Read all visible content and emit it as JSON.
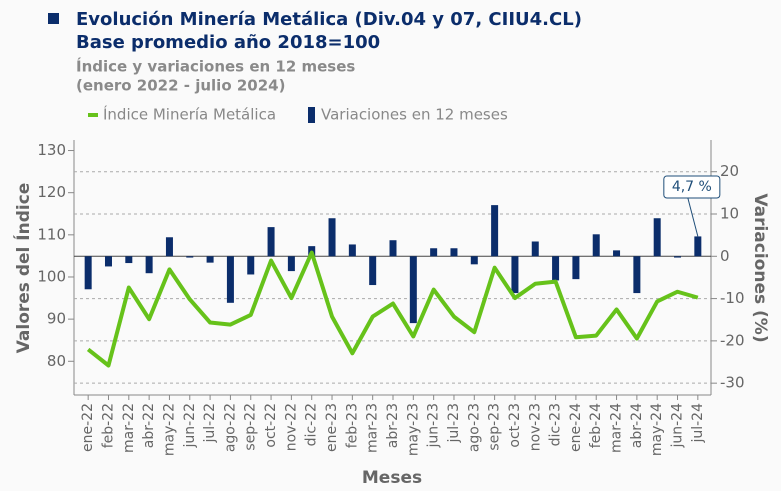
{
  "chart_data": {
    "type": "bar-line",
    "title": "Evolución Minería Metálica (Div.04 y 07, CIIU4.CL)",
    "subtitle": "Base promedio año 2018=100",
    "subtitle2": "Índice y variaciones en 12 meses",
    "subtitle3": "(enero 2022 - julio 2024)",
    "xlabel": "Meses",
    "ylabel": "Valores del Índice",
    "y2label": "Variaciones (%)",
    "categories": [
      "ene-22",
      "feb-22",
      "mar-22",
      "abr-22",
      "may-22",
      "jun-22",
      "jul-22",
      "ago-22",
      "sep-22",
      "oct-22",
      "nov-22",
      "dic-22",
      "ene-23",
      "feb-23",
      "mar-23",
      "abr-23",
      "may-23",
      "jun-23",
      "jul-23",
      "ago-23",
      "sep-23",
      "oct-23",
      "nov-23",
      "dic-23",
      "ene-24",
      "feb-24",
      "mar-24",
      "abr-24",
      "may-24",
      "jun-24",
      "jul-24"
    ],
    "series": [
      {
        "name": "Índice Minería Metálica",
        "type": "line",
        "color": "#66c21a",
        "axis": "y",
        "values": [
          82.8,
          79,
          97.5,
          90,
          101.8,
          94.7,
          89.2,
          88.7,
          91,
          103.9,
          95,
          105.8,
          90.6,
          81.9,
          90.6,
          93.7,
          85.9,
          97,
          90.6,
          86.9,
          102.2,
          95,
          98.4,
          98.9,
          85.7,
          86.1,
          92.3,
          85.4,
          94.2,
          96.5,
          95.1
        ]
      },
      {
        "name": "Variaciones en 12 meses",
        "type": "bar",
        "color": "#0b2d6b",
        "axis": "y2",
        "values": [
          -7.8,
          -2.4,
          -1.6,
          -4,
          4.5,
          -0.3,
          -1.5,
          -11,
          -4.3,
          6.9,
          -3.5,
          2.4,
          9,
          2.8,
          -6.8,
          3.8,
          -15.8,
          1.9,
          1.9,
          -1.9,
          12.1,
          -8.7,
          3.5,
          -5.7,
          -5.4,
          5.2,
          1.4,
          -8.7,
          9,
          -0.3,
          4.7
        ],
        "value_labels": [
          null,
          null,
          null,
          null,
          null,
          null,
          null,
          null,
          null,
          null,
          null,
          null,
          null,
          null,
          null,
          null,
          null,
          null,
          null,
          null,
          null,
          null,
          null,
          null,
          null,
          null,
          null,
          null,
          null,
          null,
          "4,7 %"
        ]
      }
    ],
    "ylim": [
      72,
      132.5
    ],
    "yticks": [
      80,
      90,
      100,
      110,
      120,
      130
    ],
    "y2lim": [
      -32.8,
      27.5
    ],
    "y2ticks": [
      -30,
      -20,
      -10,
      0,
      10,
      20
    ],
    "grid": true,
    "legend": "top"
  }
}
